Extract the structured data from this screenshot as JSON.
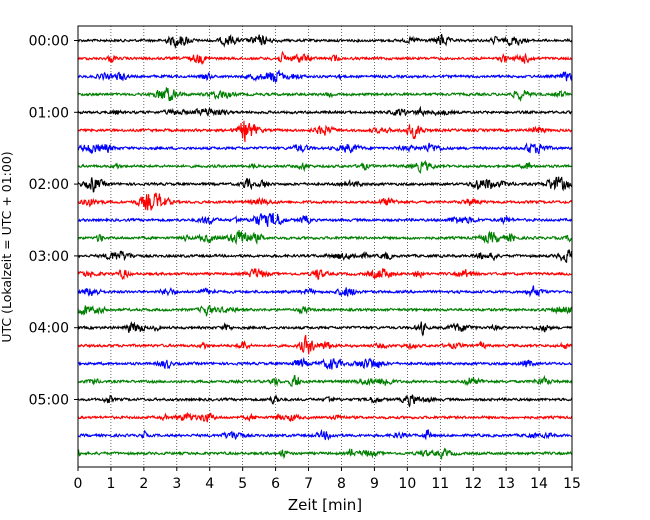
{
  "chart_data": {
    "type": "line",
    "description_kind": "helicorder",
    "xlabel": "Zeit  [min]",
    "ylabel": "UTC (Lokalzeit = UTC + 01:00)",
    "xlim": [
      0,
      15
    ],
    "x_ticks": [
      0,
      1,
      2,
      3,
      4,
      5,
      6,
      7,
      8,
      9,
      10,
      11,
      12,
      13,
      14,
      15
    ],
    "x_tick_labels": [
      "0",
      "1",
      "2",
      "3",
      "4",
      "5",
      "6",
      "7",
      "8",
      "9",
      "10",
      "11",
      "12",
      "13",
      "14",
      "15"
    ],
    "x_grid": true,
    "y_tick_labels": [
      "00:00",
      "01:00",
      "02:00",
      "03:00",
      "04:00",
      "05:00"
    ],
    "trace_minutes": 15,
    "traces_per_hour": 4,
    "trace_colors": [
      "#000000",
      "#ff0000",
      "#0000ff",
      "#008000"
    ],
    "trace_count": 24
  }
}
